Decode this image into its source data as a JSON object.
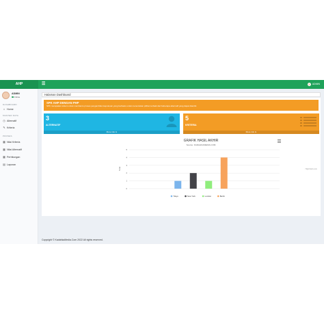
{
  "header": {
    "brand": "AHP",
    "menu_icon": "hamburger-icon",
    "user": "ADMIN"
  },
  "sidebar": {
    "profile": {
      "name": "ADMIN",
      "status": "Online"
    },
    "sections": [
      {
        "label": "DASHBOARD",
        "items": [
          {
            "label": "Home",
            "icon": "home-icon"
          }
        ]
      },
      {
        "label": "MASTER DATA",
        "items": [
          {
            "label": "Alternatif",
            "icon": "clock-icon"
          },
          {
            "label": "Kriteria",
            "icon": "edit-icon"
          }
        ]
      },
      {
        "label": "PROSES",
        "items": [
          {
            "label": "Nilai Kriteria",
            "icon": "table-icon"
          },
          {
            "label": "Nilai Alternatif",
            "icon": "table-icon"
          },
          {
            "label": "Perhitungan",
            "icon": "calculator-icon"
          },
          {
            "label": "Laporan",
            "icon": "chart-icon"
          }
        ]
      }
    ]
  },
  "breadcrumb": "Halaman Dashboard",
  "alert": {
    "title": "SPK AHP DENGAN PHP",
    "body": "SPK merupakan sistem untuk membantu proses pengambilan keputusan yang berbasis untuk menentukan pilihan terbaik dari beberapa alternatif yang dapat diambil."
  },
  "boxes": [
    {
      "number": "3",
      "label": "ALTERNATIF",
      "more": "More info",
      "color": "#1fb6e3"
    },
    {
      "number": "5",
      "label": "KRITERIA",
      "more": "More info",
      "color": "#f39c25"
    }
  ],
  "chart_data": {
    "type": "bar",
    "title": "GRAFIK HASIL AKHIR",
    "subtitle": "Source: KADAHKAMEDIA.COM",
    "ylabel": "Total",
    "ylim": [
      0,
      5
    ],
    "yticks": [
      "0",
      "1",
      "2",
      "3",
      "4",
      "5"
    ],
    "series": [
      {
        "name": "Tokyo",
        "value": 1,
        "color": "#7cb5ec"
      },
      {
        "name": "New York",
        "value": 2,
        "color": "#434348"
      },
      {
        "name": "London",
        "value": 1,
        "color": "#90ed7d"
      },
      {
        "name": "Berlin",
        "value": 4,
        "color": "#f7a35c"
      }
    ],
    "legend": "bottom",
    "watermark": "Highcharts.com"
  },
  "footer": "Copyright © KadahkaMedia.Com 2022 All rights reserved."
}
